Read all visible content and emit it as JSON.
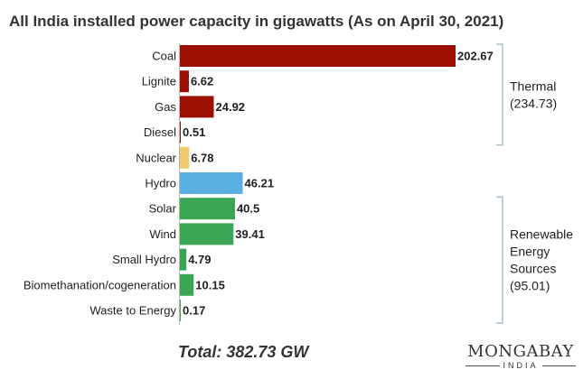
{
  "title": "All India installed power capacity in gigawatts (As on April 30, 2021)",
  "total_label": "Total: 382.73 GW",
  "logo": {
    "main": "MONGABAY",
    "sub": "INDIA"
  },
  "colors": {
    "thermal": "#9b0f00",
    "nuclear": "#efc96b",
    "hydro": "#5ab0e0",
    "renewable": "#3aa655",
    "bracket": "#a9c2c8"
  },
  "chart_data": {
    "type": "bar",
    "orientation": "horizontal",
    "title": "All India installed power capacity in gigawatts (As on April 30, 2021)",
    "categories": [
      "Coal",
      "Lignite",
      "Gas",
      "Diesel",
      "Nuclear",
      "Hydro",
      "Solar",
      "Wind",
      "Small Hydro",
      "Biomethanation/cogeneration",
      "Waste to Energy"
    ],
    "values": [
      202.67,
      6.62,
      24.92,
      0.51,
      6.78,
      46.21,
      40.5,
      39.41,
      4.79,
      10.15,
      0.17
    ],
    "value_labels": [
      "202.67",
      "6.62",
      "24.92",
      "0.51",
      "6.78",
      "46.21",
      "40.5",
      "39.41",
      "4.79",
      "10.15",
      "0.17"
    ],
    "groups": [
      "thermal",
      "thermal",
      "thermal",
      "thermal",
      "nuclear",
      "hydro",
      "renewable",
      "renewable",
      "renewable",
      "renewable",
      "renewable"
    ],
    "brackets": [
      {
        "lines": [
          "Thermal",
          "(234.73)"
        ],
        "from": 0,
        "to": 3
      },
      {
        "lines": [
          "Renewable",
          "Energy",
          "Sources",
          "(95.01)"
        ],
        "from": 6,
        "to": 10
      }
    ],
    "xlim": [
      0,
      202.67
    ],
    "grid": false,
    "legend": "none"
  }
}
